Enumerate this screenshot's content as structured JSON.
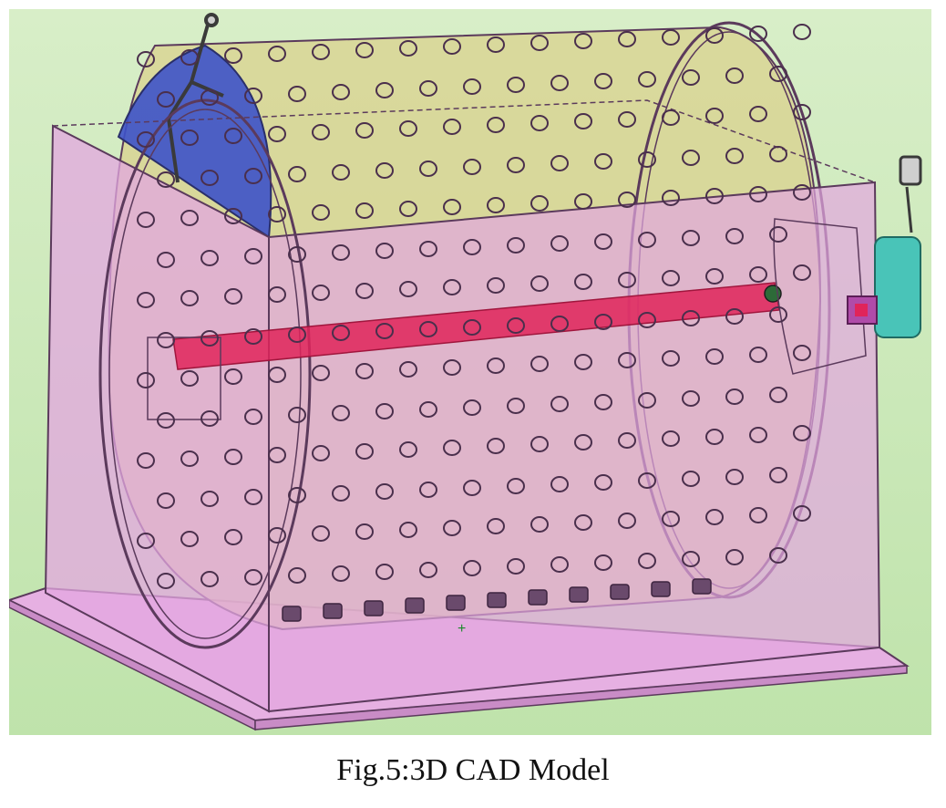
{
  "caption": "Fig.5:3D CAD Model",
  "colors": {
    "background_top": "#d6ecc6",
    "background_bottom": "#bde3a8",
    "housing_fill": "#e3a7e0",
    "housing_edge": "#5b3a5c",
    "drum_fill": "#d9d38c",
    "end_plate": "#3d52c9",
    "shaft": "#e0245a",
    "motor": "#49c4b8",
    "hole": "#4a2f4c"
  },
  "icons": [
    "handle-icon",
    "motor-icon",
    "plug-icon"
  ]
}
